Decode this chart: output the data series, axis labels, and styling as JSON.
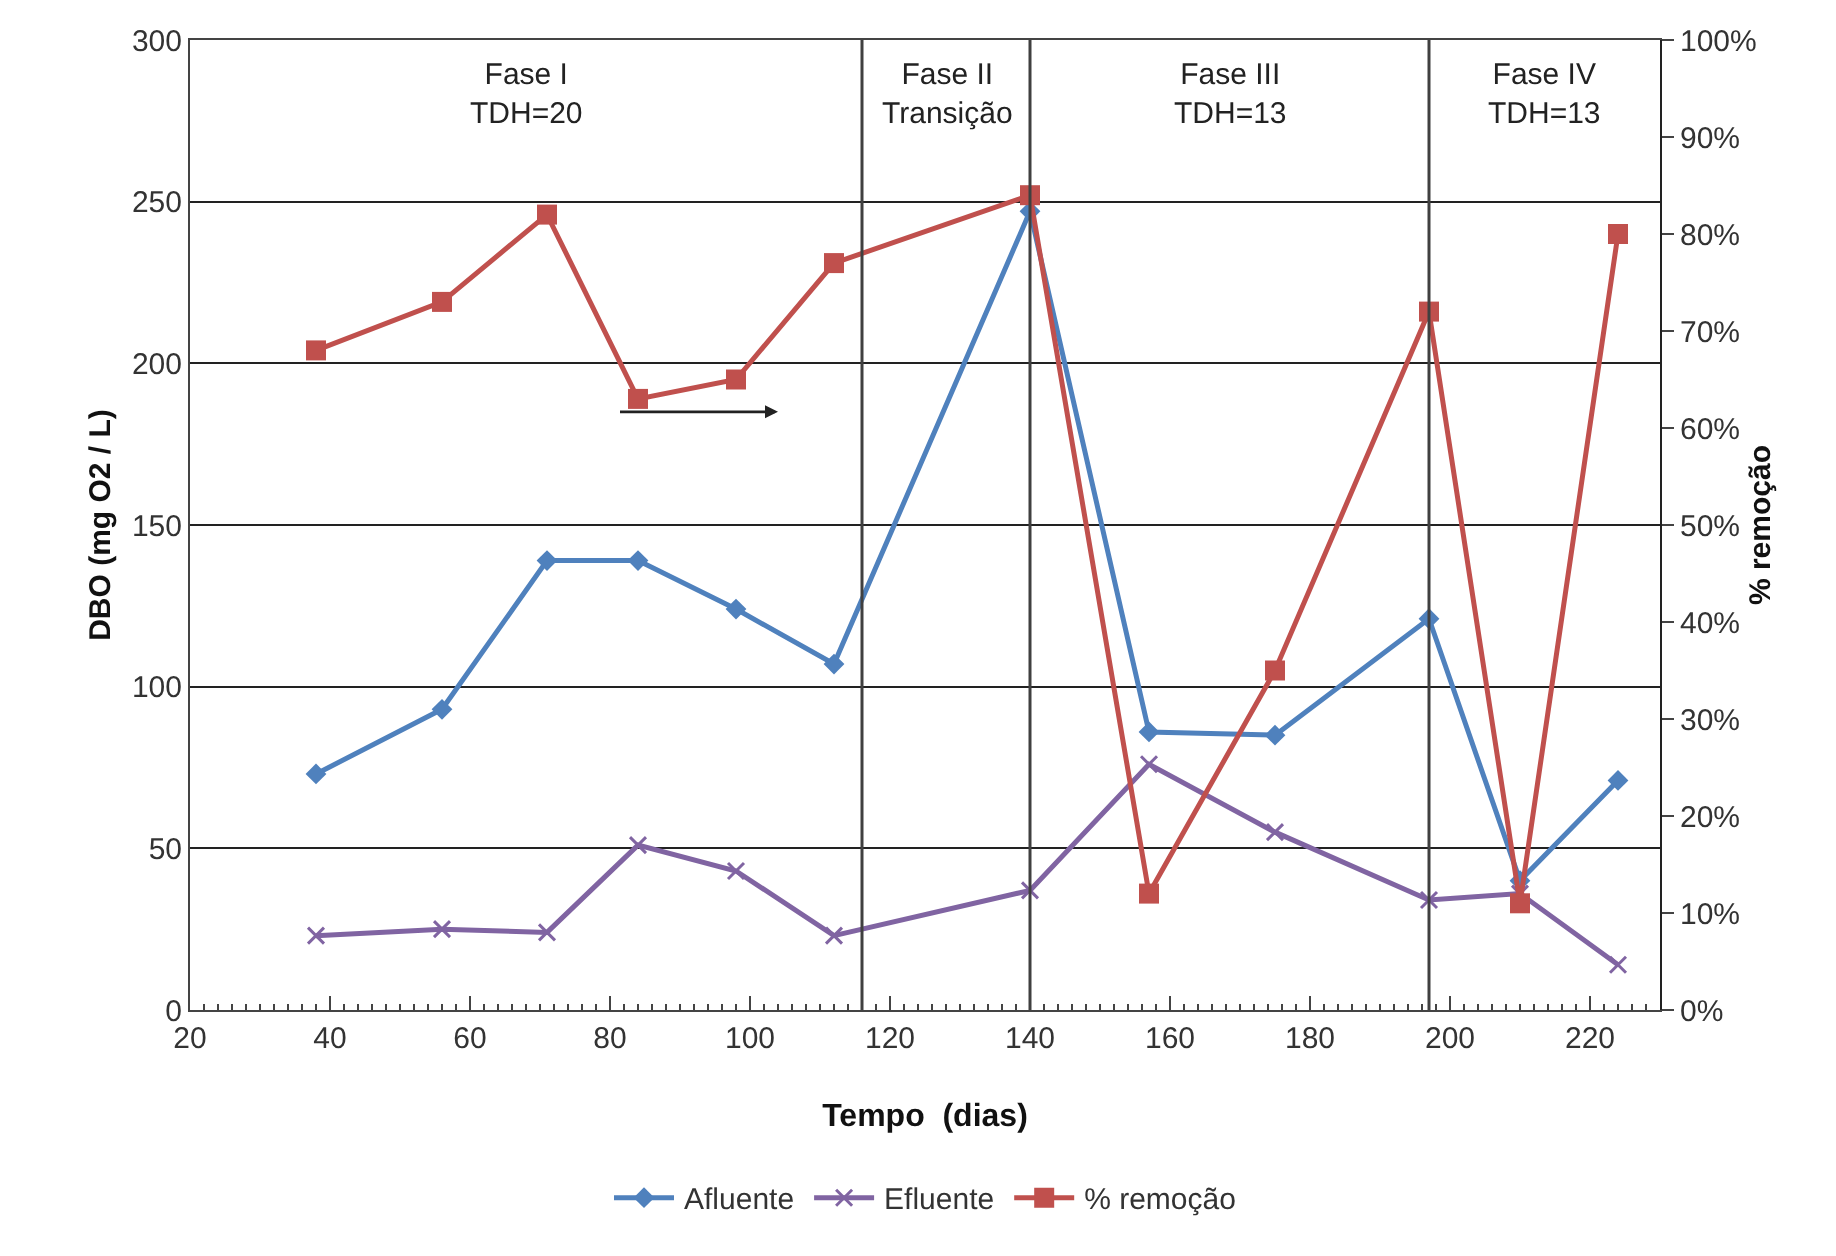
{
  "chart_data": {
    "type": "line",
    "xlabel": "Tempo  (dias)",
    "ylabel": "DBO (mg O2 / L)",
    "y2label": "% remoção",
    "x": [
      38,
      56,
      71,
      84,
      98,
      112,
      140,
      157,
      175,
      197,
      210,
      224
    ],
    "series": [
      {
        "name": "Afluente",
        "color": "#4f81bd",
        "marker": "diamond",
        "values": [
          73,
          93,
          139,
          139,
          124,
          107,
          247,
          86,
          85,
          121,
          40,
          71
        ]
      },
      {
        "name": "Efluente",
        "color": "#8064a2",
        "marker": "cross",
        "values": [
          23,
          25,
          24,
          51,
          43,
          23,
          37,
          76,
          55,
          34,
          36,
          14
        ]
      },
      {
        "name": "% remoção",
        "color": "#c0504d",
        "marker": "square",
        "axis": "y2",
        "values": [
          68,
          73,
          82,
          63,
          65,
          77,
          84,
          12,
          35,
          72,
          11,
          80
        ]
      }
    ],
    "xlim": [
      20,
      230
    ],
    "xticks": [
      20,
      40,
      60,
      80,
      100,
      120,
      140,
      160,
      180,
      200,
      220
    ],
    "ylim": [
      0,
      300
    ],
    "yticks": [
      0,
      50,
      100,
      150,
      200,
      250,
      300
    ],
    "y2lim": [
      0,
      100
    ],
    "y2ticks": [
      {
        "value": 0,
        "label": "0%"
      },
      {
        "value": 10,
        "label": "10%"
      },
      {
        "value": 20,
        "label": "20%"
      },
      {
        "value": 30,
        "label": "30%"
      },
      {
        "value": 40,
        "label": "40%"
      },
      {
        "value": 50,
        "label": "50%"
      },
      {
        "value": 60,
        "label": "60%"
      },
      {
        "value": 70,
        "label": "70%"
      },
      {
        "value": 80,
        "label": "80%"
      },
      {
        "value": 90,
        "label": "90%"
      },
      {
        "value": 100,
        "label": "100%"
      }
    ],
    "ref_lines": [
      {
        "axis": "x",
        "value": 116,
        "color": "#404040"
      },
      {
        "axis": "x",
        "value": 140,
        "color": "#404040"
      },
      {
        "axis": "x",
        "value": 197,
        "color": "#404040"
      }
    ],
    "annotations": [
      "Fase I\nTDH=20",
      "Fase II\nTransição",
      "Fase III\nTDH=13",
      "Fase IV\nTDH=13"
    ],
    "grid": "y",
    "legend": "bottom",
    "line_style": "solid"
  }
}
